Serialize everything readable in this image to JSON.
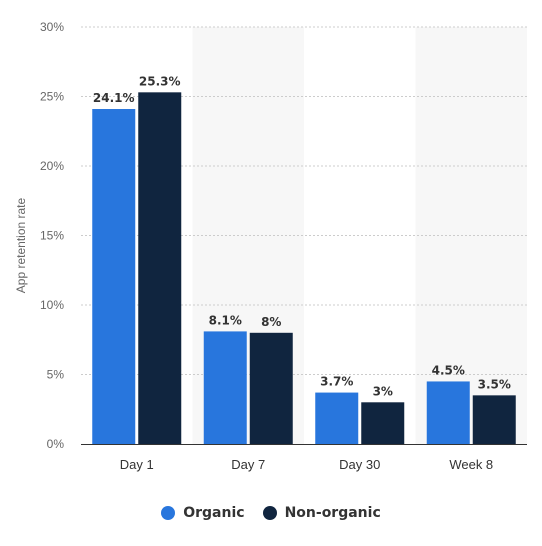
{
  "chart_data": {
    "type": "bar",
    "categories": [
      "Day 1",
      "Day 7",
      "Day 30",
      "Week 8"
    ],
    "series": [
      {
        "name": "Organic",
        "color": "#2876dd",
        "values": [
          24.1,
          8.1,
          3.7,
          4.5
        ],
        "labels": [
          "24.1%",
          "8.1%",
          "3.7%",
          "4.5%"
        ]
      },
      {
        "name": "Non-organic",
        "color": "#10253f",
        "values": [
          25.3,
          8,
          3,
          3.5
        ],
        "labels": [
          "25.3%",
          "8%",
          "3%",
          "3.5%"
        ]
      }
    ],
    "ylabel": "App retention rate",
    "xlabel": "",
    "ylim": [
      0,
      30
    ],
    "yticks": [
      {
        "value": 0,
        "label": "0%"
      },
      {
        "value": 5,
        "label": "5%"
      },
      {
        "value": 10,
        "label": "10%"
      },
      {
        "value": 15,
        "label": "15%"
      },
      {
        "value": 20,
        "label": "20%"
      },
      {
        "value": 25,
        "label": "25%"
      },
      {
        "value": 30,
        "label": "30%"
      }
    ],
    "grid": true,
    "legend_position": "bottom-center",
    "band_color": "#f7f7f7",
    "grid_color": "#cccccc",
    "axis_color": "#333333"
  }
}
